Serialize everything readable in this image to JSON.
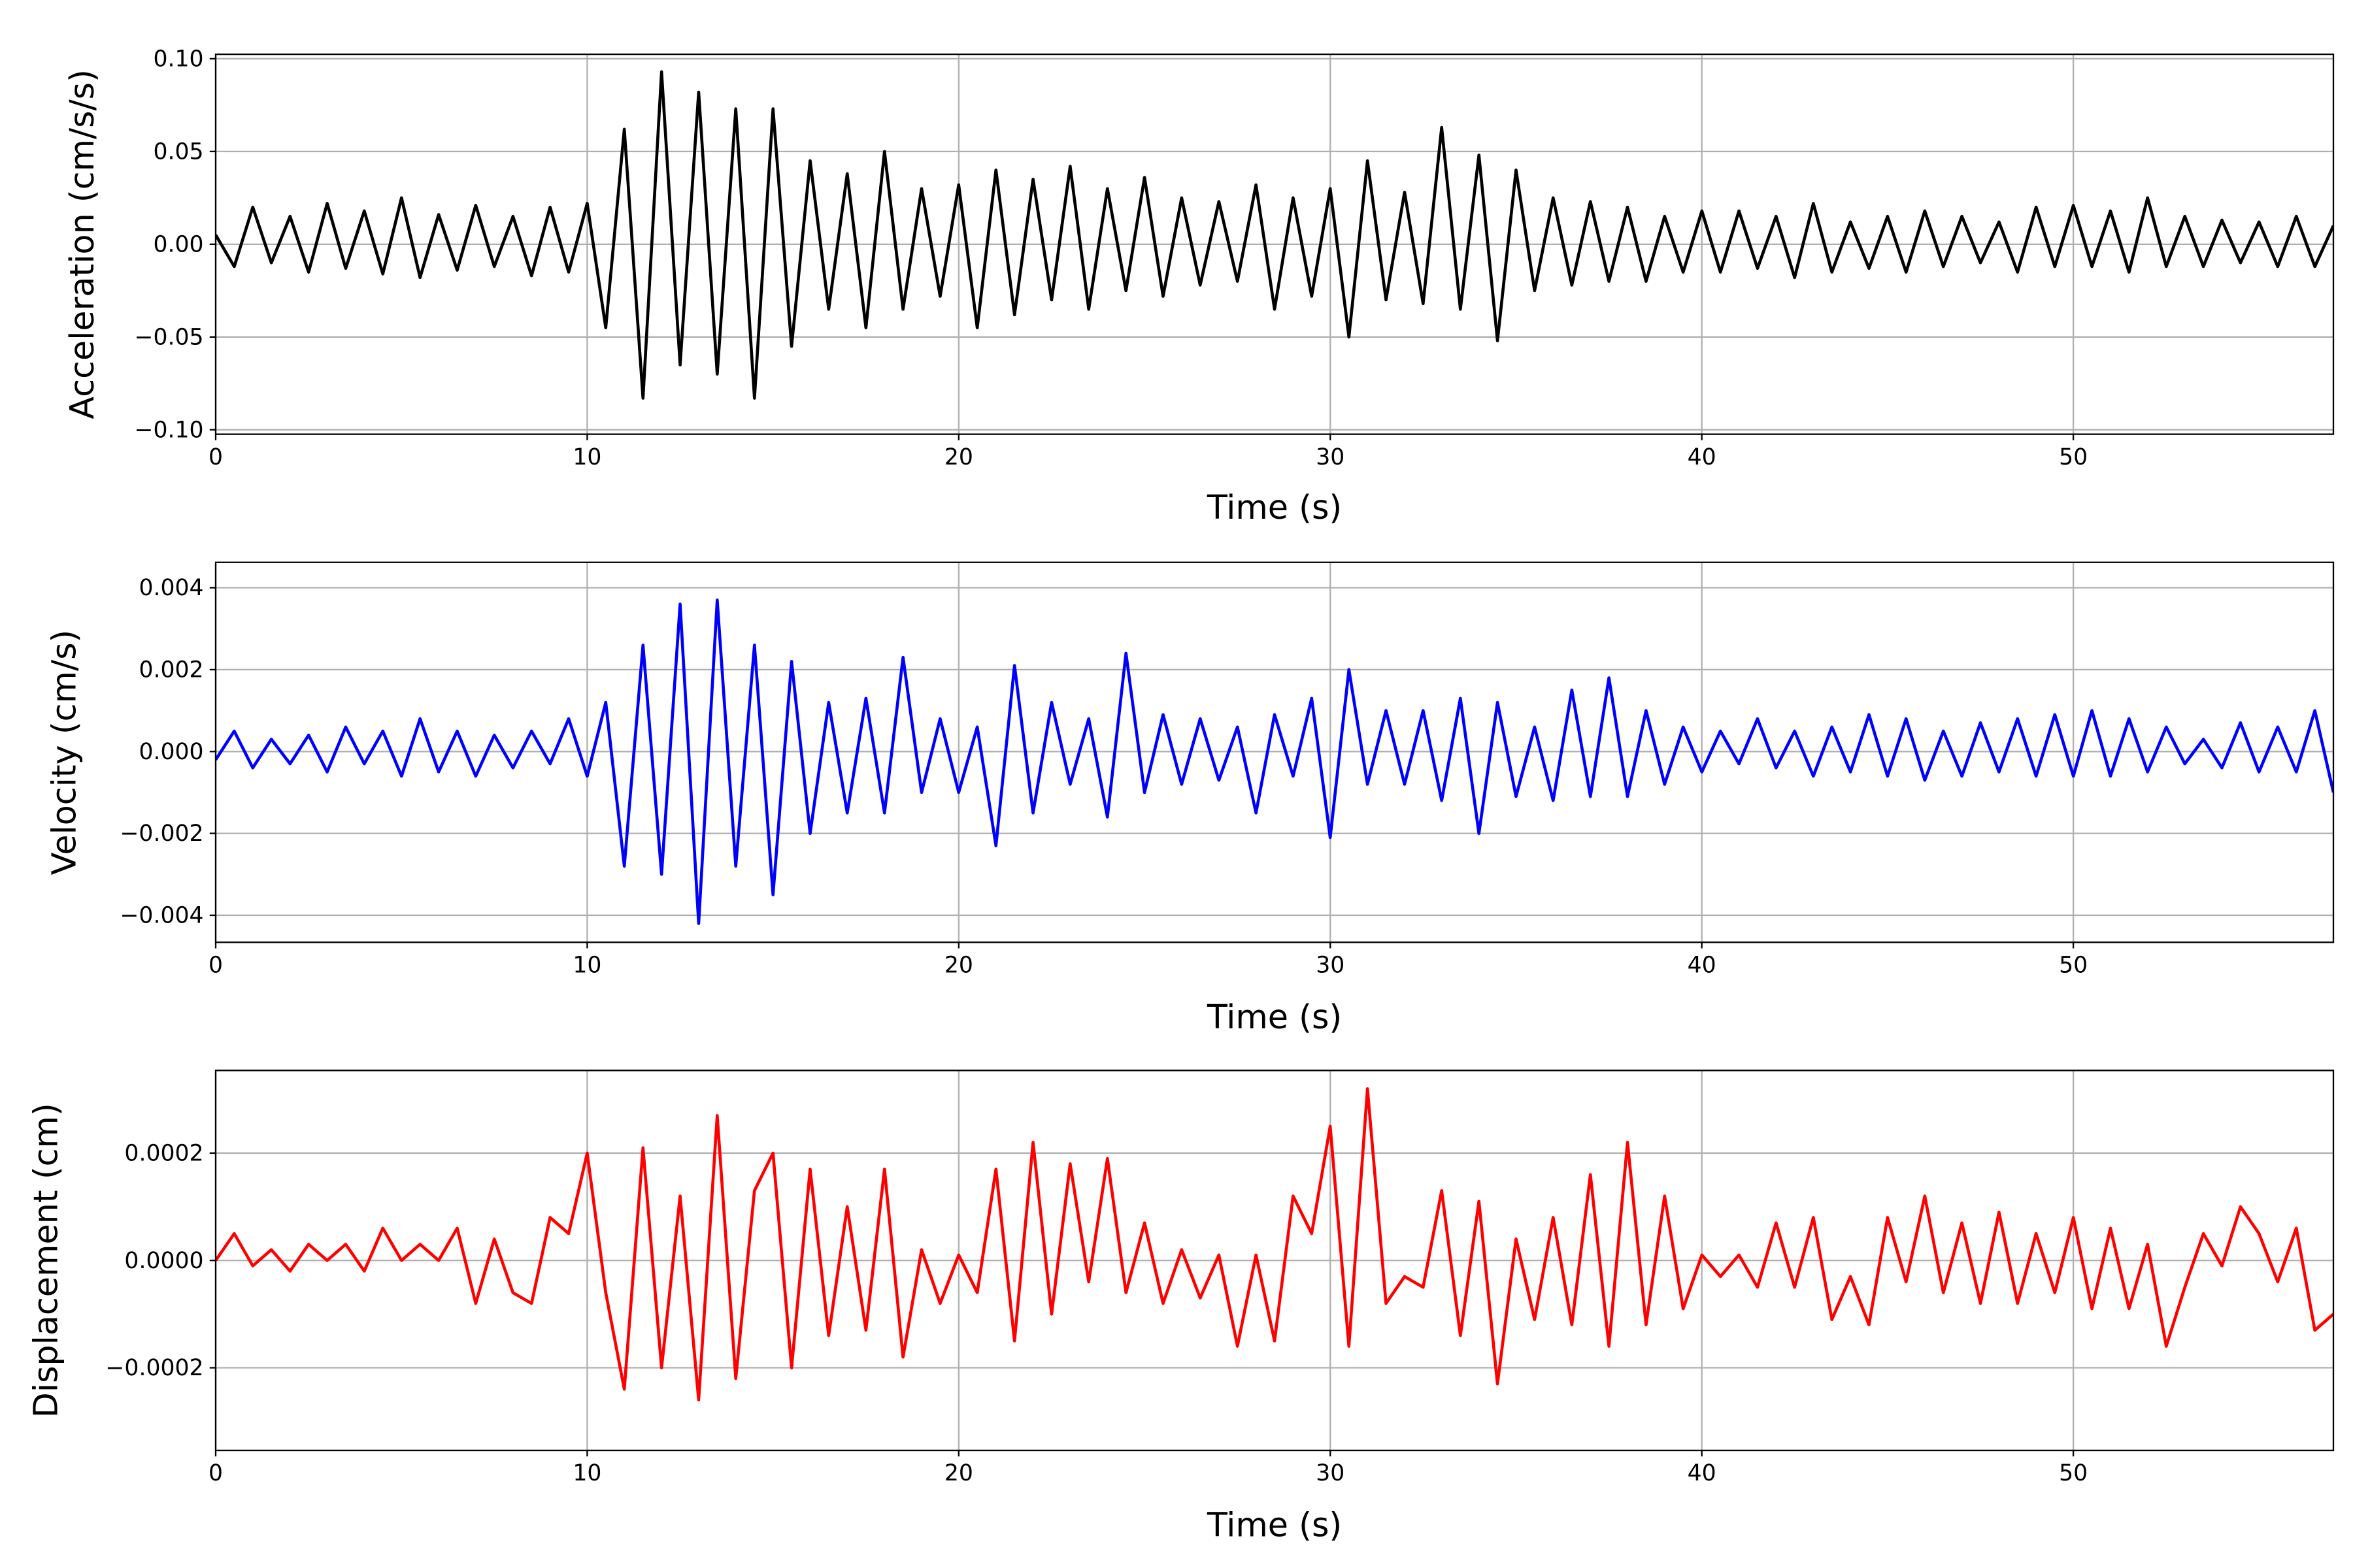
{
  "chart_data": [
    {
      "type": "line",
      "name": "acceleration",
      "xlabel": "Time (s)",
      "ylabel": "Acceleration (cm/s/s)",
      "xlim": [
        0,
        57
      ],
      "ylim": [
        -0.1024,
        0.1024
      ],
      "xticks": [
        "0",
        "10",
        "20",
        "30",
        "40",
        "50"
      ],
      "xtick_values": [
        0,
        10,
        20,
        30,
        40,
        50
      ],
      "yticks": [
        "−0.10",
        "−0.05",
        "0.00",
        "0.05",
        "0.10"
      ],
      "ytick_values": [
        -0.1,
        -0.05,
        0,
        0.05,
        0.1
      ],
      "grid": true,
      "color": "#000000",
      "x_start": 0,
      "x_step": 0.5,
      "values": [
        0.005,
        -0.012,
        0.02,
        -0.01,
        0.015,
        -0.015,
        0.022,
        -0.013,
        0.018,
        -0.016,
        0.025,
        -0.018,
        0.016,
        -0.014,
        0.021,
        -0.012,
        0.015,
        -0.017,
        0.02,
        -0.015,
        0.022,
        -0.045,
        0.062,
        -0.083,
        0.093,
        -0.065,
        0.082,
        -0.07,
        0.073,
        -0.083,
        0.073,
        -0.055,
        0.045,
        -0.035,
        0.038,
        -0.045,
        0.05,
        -0.035,
        0.03,
        -0.028,
        0.032,
        -0.045,
        0.04,
        -0.038,
        0.035,
        -0.03,
        0.042,
        -0.035,
        0.03,
        -0.025,
        0.036,
        -0.028,
        0.025,
        -0.022,
        0.023,
        -0.02,
        0.032,
        -0.035,
        0.025,
        -0.028,
        0.03,
        -0.05,
        0.045,
        -0.03,
        0.028,
        -0.032,
        0.063,
        -0.035,
        0.048,
        -0.052,
        0.04,
        -0.025,
        0.025,
        -0.022,
        0.023,
        -0.02,
        0.02,
        -0.02,
        0.015,
        -0.015,
        0.018,
        -0.015,
        0.018,
        -0.013,
        0.015,
        -0.018,
        0.022,
        -0.015,
        0.012,
        -0.013,
        0.015,
        -0.015,
        0.018,
        -0.012,
        0.015,
        -0.01,
        0.012,
        -0.015,
        0.02,
        -0.012,
        0.021,
        -0.012,
        0.018,
        -0.015,
        0.025,
        -0.012,
        0.015,
        -0.012,
        0.013,
        -0.01,
        0.012,
        -0.012,
        0.015,
        -0.012,
        0.01
      ]
    },
    {
      "type": "line",
      "name": "velocity",
      "xlabel": "Time (s)",
      "ylabel": "Velocity (cm/s)",
      "xlim": [
        0,
        57
      ],
      "ylim": [
        -0.00466,
        0.00462
      ],
      "xticks": [
        "0",
        "10",
        "20",
        "30",
        "40",
        "50"
      ],
      "xtick_values": [
        0,
        10,
        20,
        30,
        40,
        50
      ],
      "yticks": [
        "−0.004",
        "−0.002",
        "0.000",
        "0.002",
        "0.004"
      ],
      "ytick_values": [
        -0.004,
        -0.002,
        0,
        0.002,
        0.004
      ],
      "grid": true,
      "color": "#0000ff",
      "x_start": 0,
      "x_step": 0.5,
      "values": [
        -0.0002,
        0.0005,
        -0.0004,
        0.0003,
        -0.0003,
        0.0004,
        -0.0005,
        0.0006,
        -0.0003,
        0.0005,
        -0.0006,
        0.0008,
        -0.0005,
        0.0005,
        -0.0006,
        0.0004,
        -0.0004,
        0.0005,
        -0.0003,
        0.0008,
        -0.0006,
        0.0012,
        -0.0028,
        0.0026,
        -0.003,
        0.0036,
        -0.0042,
        0.0037,
        -0.0028,
        0.0026,
        -0.0035,
        0.0022,
        -0.002,
        0.0012,
        -0.0015,
        0.0013,
        -0.0015,
        0.0023,
        -0.001,
        0.0008,
        -0.001,
        0.0006,
        -0.0023,
        0.0021,
        -0.0015,
        0.0012,
        -0.0008,
        0.0008,
        -0.0016,
        0.0024,
        -0.001,
        0.0009,
        -0.0008,
        0.0008,
        -0.0007,
        0.0006,
        -0.0015,
        0.0009,
        -0.0006,
        0.0013,
        -0.0021,
        0.002,
        -0.0008,
        0.001,
        -0.0008,
        0.001,
        -0.0012,
        0.0013,
        -0.002,
        0.0012,
        -0.0011,
        0.0006,
        -0.0012,
        0.0015,
        -0.0011,
        0.0018,
        -0.0011,
        0.001,
        -0.0008,
        0.0006,
        -0.0005,
        0.0005,
        -0.0003,
        0.0008,
        -0.0004,
        0.0005,
        -0.0006,
        0.0006,
        -0.0005,
        0.0009,
        -0.0006,
        0.0008,
        -0.0007,
        0.0005,
        -0.0006,
        0.0007,
        -0.0005,
        0.0008,
        -0.0006,
        0.0009,
        -0.0006,
        0.001,
        -0.0006,
        0.0008,
        -0.0005,
        0.0006,
        -0.0003,
        0.0003,
        -0.0004,
        0.0007,
        -0.0005,
        0.0006,
        -0.0005,
        0.001,
        -0.001
      ]
    },
    {
      "type": "line",
      "name": "displacement",
      "xlabel": "Time (s)",
      "ylabel": "Displacement (cm)",
      "xlim": [
        0,
        57
      ],
      "ylim": [
        -0.000354,
        0.000354
      ],
      "xticks": [
        "0",
        "10",
        "20",
        "30",
        "40",
        "50"
      ],
      "xtick_values": [
        0,
        10,
        20,
        30,
        40,
        50
      ],
      "yticks": [
        "−0.0002",
        "0.0000",
        "0.0002"
      ],
      "ytick_values": [
        -0.0002,
        0,
        0.0002
      ],
      "grid": true,
      "color": "#ff0000",
      "x_start": 0,
      "x_step": 0.5,
      "values": [
        0.0,
        5e-05,
        -1e-05,
        2e-05,
        -2e-05,
        3e-05,
        0.0,
        3e-05,
        -2e-05,
        6e-05,
        0.0,
        3e-05,
        0.0,
        6e-05,
        -8e-05,
        4e-05,
        -6e-05,
        -8e-05,
        8e-05,
        5e-05,
        0.0002,
        -6e-05,
        -0.00024,
        0.00021,
        -0.0002,
        0.00012,
        -0.00026,
        0.00027,
        -0.00022,
        0.00013,
        0.0002,
        -0.0002,
        0.00017,
        -0.00014,
        0.0001,
        -0.00013,
        0.00017,
        -0.00018,
        2e-05,
        -8e-05,
        1e-05,
        -6e-05,
        0.00017,
        -0.00015,
        0.00022,
        -0.0001,
        0.00018,
        -4e-05,
        0.00019,
        -6e-05,
        7e-05,
        -8e-05,
        2e-05,
        -7e-05,
        1e-05,
        -0.00016,
        1e-05,
        -0.00015,
        0.00012,
        5e-05,
        0.00025,
        -0.00016,
        0.00032,
        -8e-05,
        -3e-05,
        -5e-05,
        0.00013,
        -0.00014,
        0.00011,
        -0.00023,
        4e-05,
        -0.00011,
        8e-05,
        -0.00012,
        0.00016,
        -0.00016,
        0.00022,
        -0.00012,
        0.00012,
        -9e-05,
        1e-05,
        -3e-05,
        1e-05,
        -5e-05,
        7e-05,
        -5e-05,
        8e-05,
        -0.00011,
        -3e-05,
        -0.00012,
        8e-05,
        -4e-05,
        0.00012,
        -6e-05,
        7e-05,
        -8e-05,
        9e-05,
        -8e-05,
        5e-05,
        -6e-05,
        8e-05,
        -9e-05,
        6e-05,
        -9e-05,
        3e-05,
        -0.00016,
        -5e-05,
        5e-05,
        -1e-05,
        0.0001,
        5e-05,
        -4e-05,
        6e-05,
        -0.00013,
        -0.0001
      ]
    }
  ]
}
